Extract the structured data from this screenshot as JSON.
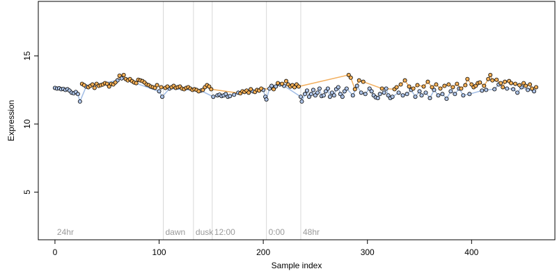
{
  "chart_data": {
    "type": "scatter",
    "xlabel": "Sample index",
    "ylabel": "Expression",
    "xlim": [
      -16,
      480
    ],
    "ylim": [
      1.5,
      19
    ],
    "x_ticks": [
      0,
      100,
      200,
      300,
      400
    ],
    "y_ticks": [
      5,
      10,
      15
    ],
    "grid": false,
    "section_boundaries": [
      104,
      133,
      151,
      203,
      236
    ],
    "section_labels": [
      {
        "x": 2,
        "label": "24hr"
      },
      {
        "x": 106,
        "label": "dawn"
      },
      {
        "x": 135,
        "label": "dusk"
      },
      {
        "x": 153,
        "label": "12:00"
      },
      {
        "x": 205,
        "label": "0:00"
      },
      {
        "x": 238,
        "label": "48hr"
      }
    ],
    "colors": {
      "group_a_fill": "#aec4e8",
      "group_b_fill": "#f5b057",
      "line_blue": "#8fb0e0",
      "line_orange": "#f0a040",
      "vline": "#d8d8d8",
      "point_edge": "#000000"
    },
    "series": [
      {
        "group": "blue",
        "points": [
          [
            0,
            12.65
          ],
          [
            2,
            12.6
          ],
          [
            4,
            12.62
          ],
          [
            6,
            12.55
          ],
          [
            8,
            12.58
          ],
          [
            10,
            12.5
          ],
          [
            12,
            12.55
          ],
          [
            14,
            12.45
          ],
          [
            16,
            12.3
          ],
          [
            18,
            12.25
          ],
          [
            20,
            12.35
          ],
          [
            22,
            12.2
          ],
          [
            24,
            11.65
          ],
          [
            30,
            12.75
          ],
          [
            60,
            13.2
          ],
          [
            64,
            13.35
          ],
          [
            100,
            12.4
          ],
          [
            103,
            12.0
          ],
          [
            110,
            12.6
          ],
          [
            140,
            12.45
          ],
          [
            152,
            12.0
          ],
          [
            156,
            12.1
          ],
          [
            158,
            12.15
          ],
          [
            160,
            12.05
          ],
          [
            162,
            12.1
          ],
          [
            164,
            12.2
          ],
          [
            166,
            12.0
          ],
          [
            168,
            12.05
          ],
          [
            172,
            12.15
          ],
          [
            176,
            12.3
          ],
          [
            190,
            12.4
          ],
          [
            200,
            12.5
          ],
          [
            202,
            12.0
          ],
          [
            203,
            11.8
          ],
          [
            206,
            12.6
          ],
          [
            208,
            12.8
          ],
          [
            212,
            12.75
          ],
          [
            216,
            12.9
          ],
          [
            220,
            12.8
          ],
          [
            236,
            12.0
          ],
          [
            237,
            11.65
          ],
          [
            240,
            12.2
          ],
          [
            242,
            12.45
          ],
          [
            244,
            12.0
          ],
          [
            246,
            12.2
          ],
          [
            248,
            12.5
          ],
          [
            250,
            12.1
          ],
          [
            252,
            12.3
          ],
          [
            254,
            12.6
          ],
          [
            256,
            12.05
          ],
          [
            258,
            12.1
          ],
          [
            260,
            12.4
          ],
          [
            262,
            12.6
          ],
          [
            264,
            12.0
          ],
          [
            266,
            12.3
          ],
          [
            268,
            12.1
          ],
          [
            270,
            12.55
          ],
          [
            272,
            12.7
          ],
          [
            274,
            12.2
          ],
          [
            276,
            12.0
          ],
          [
            278,
            12.4
          ],
          [
            280,
            12.6
          ],
          [
            286,
            12.1
          ],
          [
            290,
            12.8
          ],
          [
            294,
            12.3
          ],
          [
            298,
            12.2
          ],
          [
            302,
            12.6
          ],
          [
            304,
            12.4
          ],
          [
            306,
            12.1
          ],
          [
            308,
            11.95
          ],
          [
            310,
            11.9
          ],
          [
            312,
            12.2
          ],
          [
            316,
            12.3
          ],
          [
            318,
            12.6
          ],
          [
            320,
            12.1
          ],
          [
            322,
            11.9
          ],
          [
            324,
            12.0
          ],
          [
            330,
            12.3
          ],
          [
            334,
            12.1
          ],
          [
            338,
            12.2
          ],
          [
            342,
            12.5
          ],
          [
            346,
            12.0
          ],
          [
            350,
            12.4
          ],
          [
            352,
            12.1
          ],
          [
            356,
            12.3
          ],
          [
            360,
            11.9
          ],
          [
            364,
            12.5
          ],
          [
            368,
            12.1
          ],
          [
            372,
            12.2
          ],
          [
            376,
            11.85
          ],
          [
            380,
            12.4
          ],
          [
            384,
            12.2
          ],
          [
            388,
            12.6
          ],
          [
            392,
            12.1
          ],
          [
            398,
            12.2
          ],
          [
            410,
            12.45
          ],
          [
            414,
            12.5
          ],
          [
            422,
            12.55
          ],
          [
            426,
            12.9
          ],
          [
            434,
            12.6
          ],
          [
            440,
            12.55
          ],
          [
            444,
            12.3
          ],
          [
            448,
            12.7
          ],
          [
            454,
            12.5
          ],
          [
            460,
            12.4
          ]
        ]
      },
      {
        "group": "orange",
        "points": [
          [
            26,
            12.95
          ],
          [
            28,
            12.85
          ],
          [
            32,
            12.7
          ],
          [
            34,
            12.8
          ],
          [
            36,
            12.9
          ],
          [
            38,
            12.65
          ],
          [
            40,
            12.95
          ],
          [
            42,
            12.8
          ],
          [
            44,
            12.85
          ],
          [
            46,
            12.9
          ],
          [
            48,
            13.0
          ],
          [
            50,
            12.95
          ],
          [
            52,
            12.75
          ],
          [
            54,
            12.95
          ],
          [
            56,
            12.9
          ],
          [
            58,
            13.05
          ],
          [
            62,
            13.55
          ],
          [
            66,
            13.6
          ],
          [
            68,
            13.3
          ],
          [
            70,
            13.2
          ],
          [
            72,
            13.3
          ],
          [
            74,
            13.15
          ],
          [
            76,
            13.05
          ],
          [
            78,
            13.0
          ],
          [
            80,
            13.25
          ],
          [
            82,
            13.2
          ],
          [
            84,
            13.15
          ],
          [
            86,
            13.05
          ],
          [
            88,
            12.9
          ],
          [
            90,
            12.85
          ],
          [
            92,
            12.75
          ],
          [
            94,
            12.7
          ],
          [
            96,
            12.65
          ],
          [
            98,
            12.85
          ],
          [
            102,
            12.7
          ],
          [
            106,
            12.65
          ],
          [
            108,
            12.75
          ],
          [
            112,
            12.7
          ],
          [
            114,
            12.8
          ],
          [
            116,
            12.65
          ],
          [
            118,
            12.7
          ],
          [
            120,
            12.75
          ],
          [
            122,
            12.6
          ],
          [
            124,
            12.55
          ],
          [
            126,
            12.65
          ],
          [
            128,
            12.7
          ],
          [
            130,
            12.6
          ],
          [
            132,
            12.5
          ],
          [
            134,
            12.55
          ],
          [
            136,
            12.5
          ],
          [
            138,
            12.4
          ],
          [
            142,
            12.5
          ],
          [
            144,
            12.7
          ],
          [
            146,
            12.85
          ],
          [
            148,
            12.75
          ],
          [
            150,
            12.55
          ],
          [
            178,
            12.25
          ],
          [
            180,
            12.4
          ],
          [
            182,
            12.35
          ],
          [
            184,
            12.45
          ],
          [
            186,
            12.3
          ],
          [
            188,
            12.55
          ],
          [
            192,
            12.35
          ],
          [
            194,
            12.5
          ],
          [
            196,
            12.45
          ],
          [
            198,
            12.6
          ],
          [
            210,
            12.55
          ],
          [
            214,
            13.0
          ],
          [
            218,
            12.95
          ],
          [
            222,
            13.15
          ],
          [
            224,
            12.9
          ],
          [
            226,
            12.75
          ],
          [
            228,
            12.85
          ],
          [
            230,
            12.7
          ],
          [
            232,
            12.9
          ],
          [
            234,
            12.75
          ],
          [
            282,
            13.6
          ],
          [
            284,
            13.4
          ],
          [
            288,
            12.55
          ],
          [
            292,
            13.2
          ],
          [
            296,
            13.1
          ],
          [
            314,
            12.6
          ],
          [
            326,
            12.55
          ],
          [
            328,
            12.7
          ],
          [
            332,
            12.9
          ],
          [
            336,
            13.2
          ],
          [
            340,
            12.75
          ],
          [
            344,
            12.6
          ],
          [
            348,
            12.85
          ],
          [
            354,
            12.75
          ],
          [
            358,
            13.1
          ],
          [
            362,
            12.7
          ],
          [
            366,
            12.9
          ],
          [
            370,
            12.6
          ],
          [
            374,
            12.8
          ],
          [
            378,
            12.9
          ],
          [
            382,
            12.7
          ],
          [
            386,
            12.95
          ],
          [
            390,
            12.6
          ],
          [
            394,
            12.85
          ],
          [
            396,
            13.3
          ],
          [
            400,
            12.9
          ],
          [
            402,
            12.7
          ],
          [
            404,
            12.8
          ],
          [
            406,
            13.0
          ],
          [
            408,
            13.05
          ],
          [
            412,
            12.8
          ],
          [
            416,
            13.3
          ],
          [
            418,
            13.6
          ],
          [
            420,
            13.2
          ],
          [
            424,
            13.25
          ],
          [
            428,
            13.0
          ],
          [
            430,
            12.7
          ],
          [
            432,
            13.1
          ],
          [
            436,
            13.15
          ],
          [
            438,
            13.0
          ],
          [
            442,
            12.95
          ],
          [
            446,
            12.85
          ],
          [
            450,
            13.0
          ],
          [
            452,
            12.8
          ],
          [
            456,
            12.9
          ],
          [
            458,
            12.6
          ],
          [
            462,
            12.7
          ]
        ]
      }
    ]
  }
}
